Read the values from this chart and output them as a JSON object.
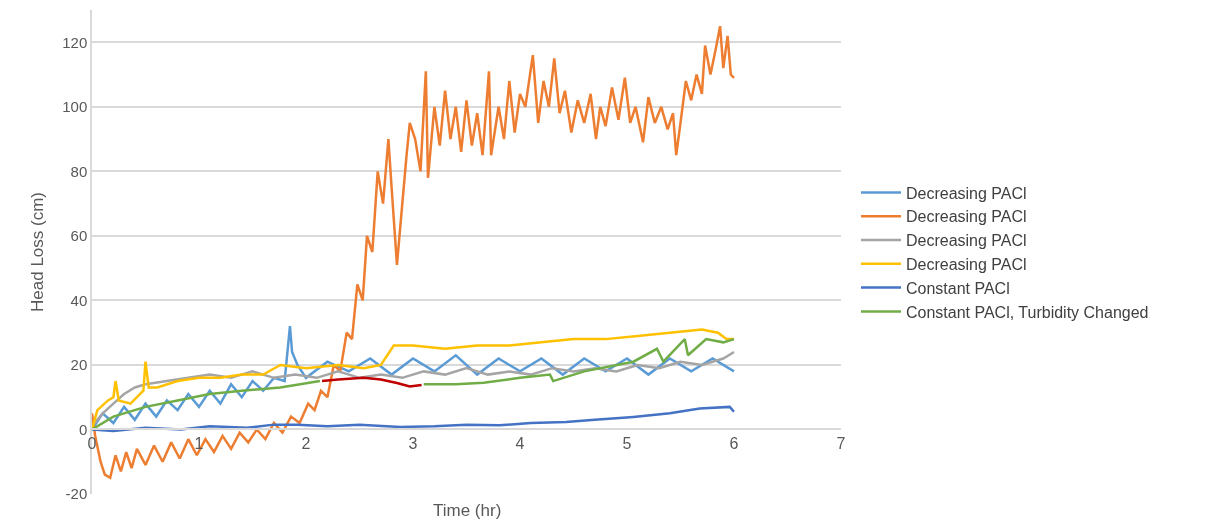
{
  "chart_data": {
    "type": "line",
    "xlabel": "Time (hr)",
    "ylabel": "Head Loss (cm)",
    "xlim": [
      0,
      7
    ],
    "xticks": [
      0,
      1,
      2,
      3,
      4,
      5,
      6,
      7
    ],
    "ylim": [
      -20,
      130
    ],
    "yticks": [
      -20,
      0,
      20,
      40,
      60,
      80,
      100,
      120
    ],
    "grid": "y",
    "legend": "right",
    "marker": "none",
    "line_style": "solid",
    "series": [
      {
        "name": "Decreasing PACl",
        "color": "#5b9bd5",
        "x": [
          0,
          0.1,
          0.2,
          0.3,
          0.4,
          0.5,
          0.6,
          0.7,
          0.8,
          0.9,
          1.0,
          1.1,
          1.2,
          1.3,
          1.4,
          1.5,
          1.6,
          1.7,
          1.8,
          1.85,
          1.87,
          1.92,
          2.0,
          2.2,
          2.4,
          2.6,
          2.8,
          3.0,
          3.2,
          3.4,
          3.6,
          3.8,
          4.0,
          4.2,
          4.4,
          4.6,
          4.8,
          5.0,
          5.2,
          5.4,
          5.6,
          5.8,
          6.0
        ],
        "values": [
          0,
          5,
          2,
          7,
          3,
          8,
          4,
          9,
          6,
          11,
          7,
          12,
          8,
          14,
          10,
          15,
          12,
          16,
          15,
          32,
          24,
          20,
          16,
          21,
          18,
          22,
          17,
          22,
          18,
          23,
          17,
          22,
          18,
          22,
          17,
          22,
          18,
          22,
          17,
          22,
          18,
          22,
          18
        ]
      },
      {
        "name": "Decreasing PACl",
        "color": "#ed7d31",
        "x": [
          0,
          0.03,
          0.08,
          0.12,
          0.17,
          0.22,
          0.27,
          0.32,
          0.37,
          0.42,
          0.5,
          0.58,
          0.66,
          0.74,
          0.82,
          0.9,
          0.98,
          1.06,
          1.14,
          1.22,
          1.3,
          1.38,
          1.46,
          1.54,
          1.62,
          1.7,
          1.78,
          1.86,
          1.94,
          2.02,
          2.08,
          2.14,
          2.2,
          2.26,
          2.32,
          2.38,
          2.43,
          2.48,
          2.53,
          2.57,
          2.62,
          2.67,
          2.72,
          2.77,
          2.8,
          2.85,
          2.9,
          2.94,
          2.97,
          3.02,
          3.07,
          3.12,
          3.14,
          3.2,
          3.25,
          3.3,
          3.35,
          3.4,
          3.45,
          3.5,
          3.55,
          3.6,
          3.65,
          3.71,
          3.73,
          3.8,
          3.85,
          3.9,
          3.95,
          4.0,
          4.05,
          4.12,
          4.17,
          4.22,
          4.27,
          4.32,
          4.37,
          4.42,
          4.48,
          4.54,
          4.6,
          4.66,
          4.71,
          4.75,
          4.8,
          4.86,
          4.92,
          4.98,
          5.03,
          5.08,
          5.15,
          5.2,
          5.26,
          5.32,
          5.38,
          5.43,
          5.46,
          5.5,
          5.55,
          5.6,
          5.65,
          5.7,
          5.73,
          5.78,
          5.83,
          5.87,
          5.9,
          5.94,
          5.97,
          6.0
        ],
        "values": [
          5,
          -2,
          -10,
          -14,
          -15,
          -8,
          -13,
          -7,
          -12,
          -6,
          -11,
          -5,
          -10,
          -4,
          -9,
          -3,
          -8,
          -3,
          -7,
          -2,
          -6,
          -1,
          -4,
          0,
          -3,
          2,
          -1,
          4,
          2,
          8,
          6,
          12,
          10,
          20,
          18,
          30,
          28,
          45,
          40,
          60,
          55,
          80,
          70,
          90,
          75,
          51,
          70,
          85,
          95,
          90,
          80,
          111,
          78,
          100,
          88,
          105,
          90,
          100,
          86,
          102,
          88,
          98,
          85,
          111,
          85,
          100,
          90,
          108,
          92,
          104,
          100,
          116,
          95,
          108,
          100,
          115,
          98,
          105,
          92,
          102,
          95,
          104,
          90,
          100,
          94,
          106,
          96,
          109,
          95,
          100,
          89,
          103,
          95,
          100,
          93,
          98,
          85,
          95,
          108,
          102,
          110,
          104,
          119,
          110,
          118,
          125,
          112,
          122,
          110,
          109
        ]
      },
      {
        "name": "Decreasing PACl",
        "color": "#a5a5a5",
        "x": [
          0,
          0.1,
          0.2,
          0.3,
          0.4,
          0.5,
          0.7,
          0.9,
          1.1,
          1.3,
          1.5,
          1.7,
          1.9,
          2.1,
          2.3,
          2.5,
          2.7,
          2.9,
          3.1,
          3.3,
          3.5,
          3.7,
          3.9,
          4.1,
          4.3,
          4.5,
          4.7,
          4.9,
          5.1,
          5.3,
          5.5,
          5.7,
          5.9,
          6.0
        ],
        "values": [
          1,
          5,
          8,
          11,
          13,
          14,
          15,
          16,
          17,
          16,
          18,
          16,
          17,
          16,
          18,
          16,
          17,
          16,
          18,
          17,
          19,
          17,
          18,
          17,
          19,
          18,
          19,
          18,
          20,
          19,
          21,
          20,
          22,
          24
        ]
      },
      {
        "name": "Decreasing PACl",
        "color": "#ffc000",
        "x": [
          0,
          0.05,
          0.15,
          0.2,
          0.22,
          0.25,
          0.36,
          0.48,
          0.5,
          0.53,
          0.61,
          0.8,
          1.0,
          1.2,
          1.4,
          1.6,
          1.76,
          2.0,
          2.3,
          2.54,
          2.7,
          2.82,
          3.0,
          3.3,
          3.6,
          3.9,
          4.2,
          4.5,
          4.8,
          5.1,
          5.4,
          5.7,
          5.85,
          5.93,
          6.0
        ],
        "values": [
          0,
          6,
          9,
          10,
          15,
          9,
          8,
          12,
          21,
          13,
          13,
          15,
          16,
          16,
          17,
          17,
          20,
          19,
          20,
          19,
          20,
          26,
          26,
          25,
          26,
          26,
          27,
          28,
          28,
          29,
          30,
          31,
          30,
          28,
          28
        ]
      },
      {
        "name": "Constant PACl",
        "color": "#4472c4",
        "x": [
          0,
          0.2,
          0.5,
          0.83,
          1.1,
          1.45,
          1.7,
          1.92,
          2.2,
          2.5,
          2.88,
          3.2,
          3.5,
          3.81,
          4.1,
          4.43,
          4.7,
          5.06,
          5.4,
          5.68,
          5.96,
          6.0
        ],
        "values": [
          0,
          -0.5,
          0.5,
          0,
          1,
          0.5,
          1.5,
          1.5,
          1,
          1.5,
          0.8,
          1,
          1.5,
          1.3,
          2,
          2.3,
          3,
          3.9,
          5,
          6.5,
          7,
          5.5
        ]
      },
      {
        "name": "Constant PACl, Turbidity Changed",
        "color": "#70ad47",
        "x": [
          0,
          0.2,
          0.5,
          0.8,
          1.1,
          1.4,
          1.76,
          2.13,
          2.5,
          2.8,
          3.1,
          3.4,
          3.66,
          4.0,
          4.28,
          4.31,
          4.6,
          5.06,
          5.28,
          5.34,
          5.54,
          5.57,
          5.74,
          5.9,
          6.0
        ],
        "values": [
          0,
          4,
          7,
          9,
          11,
          12,
          13,
          15,
          null,
          null,
          14,
          14,
          14.5,
          16,
          17,
          15,
          18,
          21,
          25,
          21,
          28,
          23,
          28,
          27,
          28
        ]
      },
      {
        "color": "#c00000",
        "x": [
          2.15,
          2.3,
          2.54,
          2.7,
          2.85,
          2.97,
          3.08
        ],
        "values": [
          15,
          15.5,
          16,
          15.5,
          14.4,
          13.3,
          13.8
        ]
      }
    ]
  }
}
